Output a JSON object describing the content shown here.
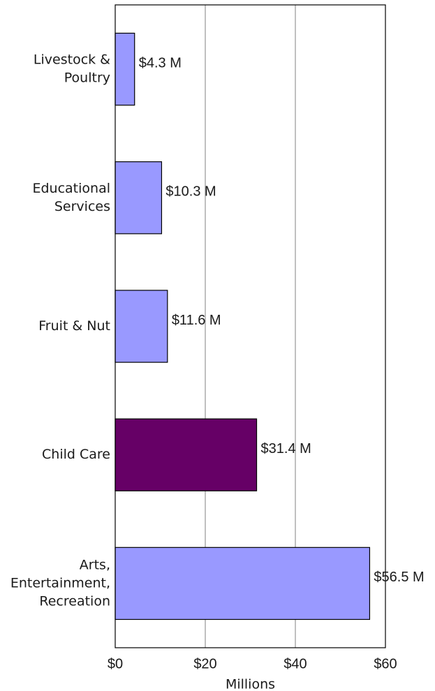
{
  "chart_data": {
    "type": "bar",
    "orientation": "horizontal",
    "categories": [
      [
        "Livestock &",
        "Poultry"
      ],
      [
        "Educational",
        "Services"
      ],
      [
        "Fruit & Nut"
      ],
      [
        "Child Care"
      ],
      [
        "Arts,",
        "Entertainment,",
        "Recreation"
      ]
    ],
    "values": [
      4.3,
      10.3,
      11.6,
      31.4,
      56.5
    ],
    "data_labels": [
      "$4.3 M",
      "$10.3 M",
      "$11.6 M",
      "$31.4 M",
      "$56.5 M"
    ],
    "highlight_index": 3,
    "xlabel": "Millions",
    "xlim": [
      0,
      60
    ],
    "x_ticks": [
      0,
      20,
      40,
      60
    ],
    "x_tick_labels": [
      "$0",
      "$20",
      "$40",
      "$60"
    ],
    "grid": "vertical",
    "colors": {
      "bar": "#9999ff",
      "highlight": "#660066",
      "grid": "#808080",
      "frame": "#000000"
    }
  }
}
